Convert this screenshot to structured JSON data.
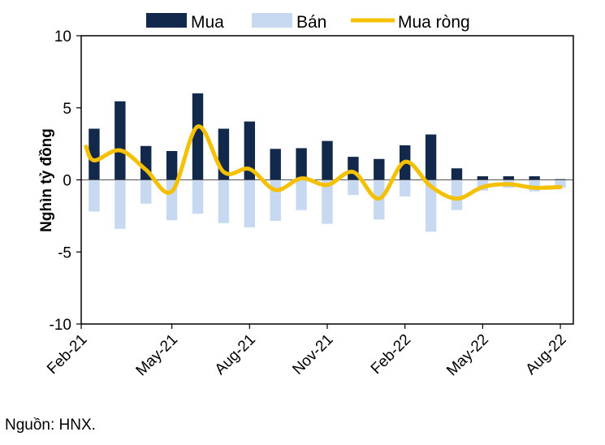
{
  "chart_data": {
    "type": "bar",
    "title": "",
    "xlabel": "",
    "ylabel": "Nghìn tỷ đồng",
    "ylim": [
      -10,
      10
    ],
    "yticks": [
      10,
      5,
      0,
      -5,
      -10
    ],
    "categories": [
      "Feb-21",
      "Mar-21",
      "Apr-21",
      "May-21",
      "Jun-21",
      "Jul-21",
      "Aug-21",
      "Sep-21",
      "Oct-21",
      "Nov-21",
      "Dec-21",
      "Jan-22",
      "Feb-22",
      "Mar-22",
      "Apr-22",
      "May-22",
      "Jun-22",
      "Jul-22",
      "Aug-22"
    ],
    "xtick_labels": [
      "Feb-21",
      "May-21",
      "Aug-21",
      "Nov-21",
      "Feb-22",
      "May-22",
      "Aug-22"
    ],
    "series": [
      {
        "name": "Mua",
        "type": "bar",
        "color": "#13294b",
        "values": [
          3.55,
          5.45,
          2.35,
          2.0,
          6.0,
          3.55,
          4.05,
          2.15,
          2.2,
          2.7,
          1.6,
          1.45,
          2.4,
          3.15,
          0.8,
          0.25,
          0.25,
          0.25,
          0.05
        ]
      },
      {
        "name": "Bán",
        "type": "bar",
        "color": "#c6d9f1",
        "values": [
          -2.2,
          -3.4,
          -1.65,
          -2.8,
          -2.35,
          -3.0,
          -3.3,
          -2.85,
          -2.1,
          -3.05,
          -1.05,
          -2.75,
          -1.15,
          -3.6,
          -2.1,
          -0.75,
          -0.55,
          -0.8,
          -0.55
        ]
      },
      {
        "name": "Mua ròng",
        "type": "line",
        "color": "#f5c000",
        "values": [
          1.35,
          2.05,
          0.7,
          -0.8,
          3.7,
          0.55,
          0.75,
          -0.7,
          0.1,
          -0.35,
          0.55,
          -1.3,
          1.25,
          -0.45,
          -1.3,
          -0.5,
          -0.3,
          -0.55,
          -0.5
        ]
      }
    ],
    "legend": "top"
  },
  "source_text": "Nguồn: HNX."
}
